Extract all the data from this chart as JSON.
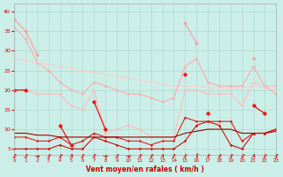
{
  "background_color": "#cceee8",
  "grid_color": "#aaddcc",
  "x_ticks": [
    0,
    1,
    2,
    3,
    4,
    5,
    6,
    7,
    8,
    9,
    10,
    11,
    12,
    13,
    14,
    15,
    16,
    17,
    18,
    19,
    20,
    21,
    22,
    23
  ],
  "xlabel": "Vent moyen/en rafales ( km/h )",
  "ylabel_ticks": [
    5,
    10,
    15,
    20,
    25,
    30,
    35,
    40
  ],
  "ylim": [
    3.5,
    42
  ],
  "xlim": [
    0,
    23
  ],
  "series": [
    {
      "name": "max_gust_light",
      "color": "#ff9999",
      "lw": 0.8,
      "marker": "D",
      "ms": 2.0,
      "y": [
        38,
        35,
        29,
        null,
        null,
        null,
        null,
        null,
        null,
        null,
        null,
        null,
        null,
        null,
        null,
        37,
        32,
        null,
        null,
        null,
        null,
        28,
        null,
        null
      ]
    },
    {
      "name": "mean_gust_light",
      "color": "#ffaaaa",
      "lw": 0.8,
      "marker": "D",
      "ms": 1.5,
      "y": [
        36,
        33,
        27,
        25,
        22,
        20,
        19,
        22,
        21,
        20,
        19,
        19,
        18,
        17,
        18,
        26,
        28,
        22,
        21,
        21,
        21,
        26,
        21,
        19
      ]
    },
    {
      "name": "trend_gust_light",
      "color": "#ffcccc",
      "lw": 0.8,
      "marker": null,
      "ms": 0,
      "y": [
        28,
        27.5,
        27,
        26.5,
        26,
        25.5,
        25,
        24.5,
        24,
        23.5,
        23,
        22.5,
        22,
        21.5,
        21,
        21,
        21,
        20.5,
        20.5,
        20.5,
        20.5,
        21,
        20.5,
        20
      ]
    },
    {
      "name": "mean_wind_light",
      "color": "#ffbbbb",
      "lw": 0.8,
      "marker": "D",
      "ms": 1.5,
      "y": [
        20,
        20,
        19,
        19,
        19,
        16,
        15,
        20,
        9,
        10,
        11,
        10,
        8,
        8,
        8,
        20,
        20,
        19,
        19,
        19,
        16,
        22,
        21,
        21
      ]
    },
    {
      "name": "max_wind_dark",
      "color": "#ee1111",
      "lw": 0.9,
      "marker": "D",
      "ms": 2.5,
      "y": [
        20,
        20,
        null,
        null,
        11,
        6,
        null,
        17,
        10,
        null,
        null,
        null,
        null,
        null,
        null,
        24,
        null,
        14,
        null,
        null,
        null,
        16,
        14,
        null
      ]
    },
    {
      "name": "mean_wind_dark",
      "color": "#dd2222",
      "lw": 0.8,
      "marker": "D",
      "ms": 1.5,
      "y": [
        8,
        8,
        7,
        7,
        8,
        6,
        7,
        9,
        8,
        8,
        7,
        7,
        6,
        7,
        7,
        13,
        12,
        12,
        12,
        12,
        7,
        9,
        9,
        10
      ]
    },
    {
      "name": "trend_wind_dark",
      "color": "#990000",
      "lw": 0.8,
      "marker": null,
      "ms": 0,
      "y": [
        9,
        9,
        8.5,
        8.5,
        8,
        8,
        8,
        8,
        8,
        8,
        8,
        8,
        8,
        8,
        8,
        9,
        9.5,
        10,
        10,
        10,
        9,
        9,
        9,
        9.5
      ]
    },
    {
      "name": "min_wind_dark",
      "color": "#cc1111",
      "lw": 0.8,
      "marker": "D",
      "ms": 1.5,
      "y": [
        5,
        5,
        5,
        5,
        6,
        5,
        5,
        8,
        7,
        6,
        5,
        5,
        5,
        5,
        5,
        7,
        11,
        12,
        11,
        6,
        5,
        9,
        9,
        10
      ]
    }
  ],
  "arrows": [
    {
      "x": 0,
      "type": "diagonal"
    },
    {
      "x": 1,
      "type": "diagonal"
    },
    {
      "x": 2,
      "type": "horizontal"
    },
    {
      "x": 3,
      "type": "diagonal"
    },
    {
      "x": 4,
      "type": "diagonal"
    },
    {
      "x": 5,
      "type": "diagonal"
    },
    {
      "x": 6,
      "type": "diagonal"
    },
    {
      "x": 7,
      "type": "diagonal"
    },
    {
      "x": 8,
      "type": "horizontal"
    },
    {
      "x": 9,
      "type": "diagonal"
    },
    {
      "x": 10,
      "type": "horizontal"
    },
    {
      "x": 11,
      "type": "diagonal"
    },
    {
      "x": 12,
      "type": "diagonal"
    },
    {
      "x": 13,
      "type": "diagonal"
    },
    {
      "x": 14,
      "type": "diagonal"
    },
    {
      "x": 15,
      "type": "diagonal"
    },
    {
      "x": 16,
      "type": "vertical"
    },
    {
      "x": 17,
      "type": "diagonal"
    },
    {
      "x": 18,
      "type": "diagonal"
    },
    {
      "x": 19,
      "type": "diagonal"
    },
    {
      "x": 20,
      "type": "diagonal"
    },
    {
      "x": 21,
      "type": "diagonal"
    },
    {
      "x": 22,
      "type": "diagonal"
    },
    {
      "x": 23,
      "type": "diagonal"
    }
  ],
  "arrow_color": "#cc2222",
  "arrow_fontsize": 5.5
}
